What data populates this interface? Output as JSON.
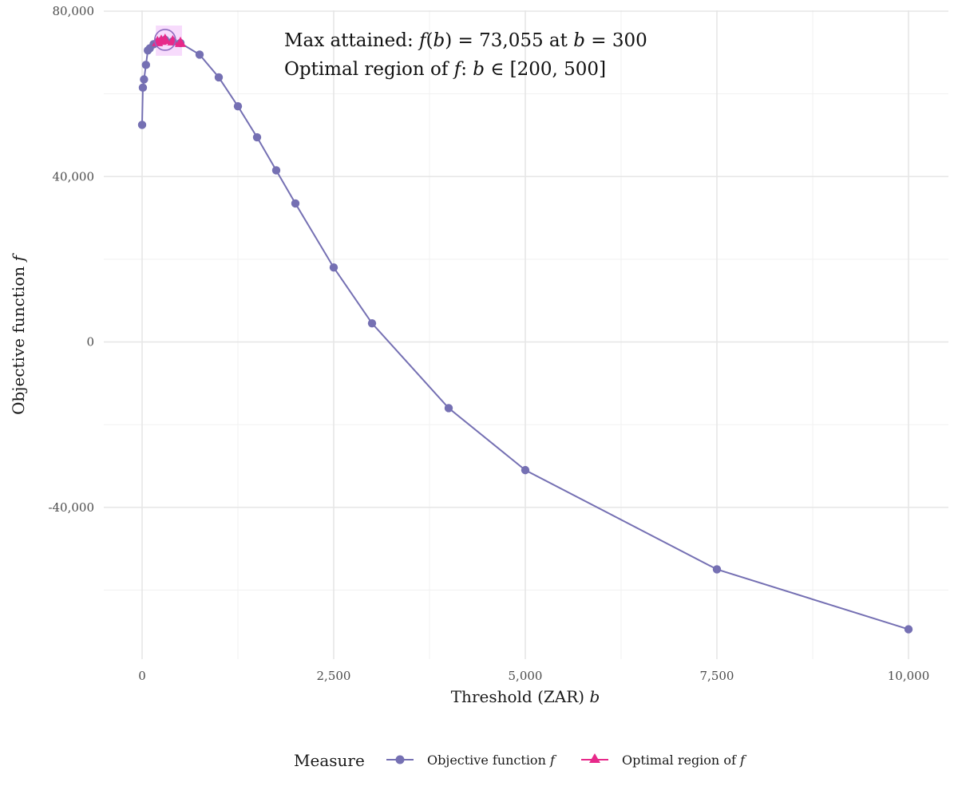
{
  "chart_data": {
    "type": "line",
    "xlabel": "Threshold (ZAR)",
    "xlabel_var": "b",
    "ylabel": "Objective function",
    "ylabel_var": "f",
    "xlim": [
      -100,
      10200
    ],
    "ylim": [
      -76500,
      80000
    ],
    "x_ticks": [
      0,
      2500,
      5000,
      7500,
      10000
    ],
    "x_tick_labels": [
      "0",
      "2,500",
      "5,000",
      "7,500",
      "10,000"
    ],
    "y_ticks": [
      -40000,
      0,
      40000,
      80000
    ],
    "y_tick_labels": [
      "-40,000",
      "0",
      "40,000",
      "80,000"
    ],
    "grid": true,
    "series": [
      {
        "name": "Objective function",
        "name_var": "f",
        "color": "#7570b3",
        "marker": "circle",
        "x": [
          0,
          10,
          25,
          50,
          75,
          100,
          150,
          200,
          250,
          300,
          400,
          500,
          750,
          1000,
          1250,
          1500,
          1750,
          2000,
          2500,
          3000,
          4000,
          5000,
          7500,
          10000
        ],
        "y": [
          52500,
          61500,
          63500,
          67000,
          70500,
          71000,
          72000,
          72500,
          72800,
          73055,
          72700,
          72300,
          69500,
          64000,
          57000,
          49500,
          41500,
          33500,
          18000,
          4500,
          -16000,
          -31000,
          -55000,
          -69500
        ]
      },
      {
        "name": "Optimal region of",
        "name_var": "f",
        "color": "#e7298a",
        "marker": "triangle",
        "x": [
          200,
          250,
          300,
          400,
          500
        ],
        "y": [
          72500,
          72800,
          73055,
          72700,
          72300
        ]
      }
    ],
    "highlight": {
      "x_range": [
        200,
        500
      ],
      "color": "#f6d5fb",
      "max_point": {
        "x": 300,
        "y": 73055
      },
      "circle_color": "#8e6bbf"
    },
    "annotation": {
      "line1_prefix": "Max attained: ",
      "line1_func": "f",
      "line1_arg": "b",
      "line1_value": " = 73,055 at ",
      "line1_var": "b",
      "line1_end": " = 300",
      "line2_prefix": "Optimal region of ",
      "line2_func": "f",
      "line2_sep": ": ",
      "line2_var": "b",
      "line2_in": " ∈ ",
      "line2_range": " [200, 500]"
    },
    "legend": {
      "title": "Measure",
      "position": "bottom"
    }
  }
}
